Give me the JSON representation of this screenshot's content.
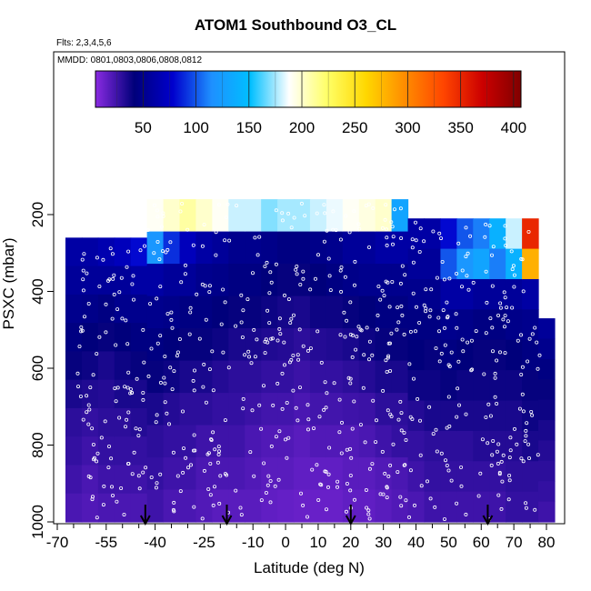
{
  "title": "ATOM1 Southbound O3_CL",
  "flights_note": "Flts: 2,3,4,5,6",
  "dates_note": "MMDD: 0801,0803,0806,0808,0812",
  "chart_data": {
    "type": "heatmap",
    "title": "ATOM1 Southbound O3_CL",
    "xlabel": "Latitude (deg N)",
    "ylabel": "PSXC (mbar)",
    "xlim": [
      -70,
      80
    ],
    "ylim": [
      1000,
      140
    ],
    "y_inverted": true,
    "x_ticks": [
      -70,
      -55,
      -40,
      -25,
      -10,
      0,
      10,
      20,
      30,
      40,
      50,
      60,
      70,
      80
    ],
    "x_minor_ticks": [
      -65,
      -60,
      -50,
      -45,
      -35,
      -30,
      -20,
      -15,
      -5,
      5,
      15,
      25,
      35,
      45,
      55,
      65,
      75
    ],
    "y_ticks": [
      200,
      400,
      600,
      800,
      1000
    ],
    "colorbar": {
      "range": [
        5,
        407
      ],
      "ticks": [
        50,
        100,
        150,
        200,
        250,
        300,
        350,
        400
      ],
      "placement": "top",
      "colors": [
        "#8a2be2",
        "#00007a",
        "#0000cd",
        "#1e90ff",
        "#00bfff",
        "#ffffff",
        "#ffff66",
        "#ffd700",
        "#ff8c00",
        "#ff4500",
        "#cc0000",
        "#800000"
      ]
    },
    "grid": false,
    "columns": [
      {
        "lat": -65,
        "top": 260,
        "bottom": 1000,
        "o3": [
          60,
          55,
          50,
          45,
          40,
          35,
          30,
          28,
          25,
          22
        ]
      },
      {
        "lat": -60,
        "top": 260,
        "bottom": 1000,
        "o3": [
          60,
          55,
          48,
          42,
          38,
          33,
          28,
          25,
          22,
          20
        ]
      },
      {
        "lat": -55,
        "top": 260,
        "bottom": 1000,
        "o3": [
          65,
          55,
          45,
          40,
          35,
          32,
          30,
          28,
          25,
          22
        ]
      },
      {
        "lat": -50,
        "top": 260,
        "bottom": 1000,
        "o3": [
          70,
          55,
          50,
          42,
          38,
          35,
          30,
          28,
          25,
          22
        ]
      },
      {
        "lat": -45,
        "top": 260,
        "bottom": 1000,
        "o3": [
          80,
          60,
          50,
          45,
          40,
          35,
          32,
          28,
          25,
          22
        ]
      },
      {
        "lat": -40,
        "top": 160,
        "bottom": 1000,
        "o3": [
          190,
          120,
          60,
          50,
          45,
          40,
          35,
          30,
          28,
          25
        ]
      },
      {
        "lat": -35,
        "top": 160,
        "bottom": 1000,
        "o3": [
          200,
          90,
          55,
          48,
          42,
          38,
          32,
          28,
          25,
          22
        ]
      },
      {
        "lat": -30,
        "top": 160,
        "bottom": 1000,
        "o3": [
          210,
          70,
          55,
          45,
          40,
          35,
          30,
          28,
          25,
          22
        ]
      },
      {
        "lat": -25,
        "top": 160,
        "bottom": 1000,
        "o3": [
          200,
          60,
          50,
          45,
          40,
          35,
          30,
          25,
          22,
          20
        ]
      },
      {
        "lat": -20,
        "top": 160,
        "bottom": 1000,
        "o3": [
          190,
          55,
          48,
          42,
          38,
          32,
          28,
          25,
          22,
          18
        ]
      },
      {
        "lat": -15,
        "top": 160,
        "bottom": 1000,
        "o3": [
          180,
          50,
          45,
          40,
          35,
          30,
          28,
          25,
          22,
          18
        ]
      },
      {
        "lat": -10,
        "top": 160,
        "bottom": 1000,
        "o3": [
          180,
          50,
          45,
          40,
          35,
          30,
          26,
          22,
          20,
          18
        ]
      },
      {
        "lat": -5,
        "top": 160,
        "bottom": 1000,
        "o3": [
          170,
          48,
          42,
          38,
          33,
          28,
          24,
          20,
          18,
          16
        ]
      },
      {
        "lat": 0,
        "top": 160,
        "bottom": 1000,
        "o3": [
          175,
          45,
          40,
          36,
          32,
          28,
          24,
          20,
          18,
          15
        ]
      },
      {
        "lat": 5,
        "top": 160,
        "bottom": 1000,
        "o3": [
          175,
          45,
          40,
          35,
          30,
          26,
          22,
          18,
          16,
          14
        ]
      },
      {
        "lat": 10,
        "top": 160,
        "bottom": 1000,
        "o3": [
          180,
          48,
          42,
          38,
          32,
          28,
          24,
          20,
          16,
          14
        ]
      },
      {
        "lat": 15,
        "top": 160,
        "bottom": 1000,
        "o3": [
          185,
          50,
          45,
          38,
          33,
          28,
          24,
          20,
          16,
          14
        ]
      },
      {
        "lat": 20,
        "top": 160,
        "bottom": 1000,
        "o3": [
          190,
          55,
          48,
          40,
          35,
          30,
          25,
          20,
          18,
          16
        ]
      },
      {
        "lat": 25,
        "top": 160,
        "bottom": 1000,
        "o3": [
          195,
          55,
          50,
          42,
          38,
          32,
          26,
          22,
          18,
          16
        ]
      },
      {
        "lat": 30,
        "top": 160,
        "bottom": 1000,
        "o3": [
          200,
          60,
          50,
          45,
          40,
          35,
          30,
          25,
          20,
          18
        ]
      },
      {
        "lat": 35,
        "top": 160,
        "bottom": 1000,
        "o3": [
          130,
          60,
          50,
          45,
          40,
          35,
          30,
          28,
          22,
          20
        ]
      },
      {
        "lat": 40,
        "top": 210,
        "bottom": 1000,
        "o3": [
          60,
          55,
          50,
          45,
          42,
          38,
          32,
          28,
          25,
          22
        ]
      },
      {
        "lat": 45,
        "top": 210,
        "bottom": 1000,
        "o3": [
          60,
          55,
          50,
          45,
          40,
          38,
          35,
          30,
          28,
          25
        ]
      },
      {
        "lat": 50,
        "top": 210,
        "bottom": 1000,
        "o3": [
          80,
          100,
          60,
          50,
          45,
          40,
          35,
          30,
          28,
          25
        ]
      },
      {
        "lat": 55,
        "top": 210,
        "bottom": 1000,
        "o3": [
          100,
          120,
          60,
          48,
          42,
          38,
          35,
          30,
          28,
          25
        ]
      },
      {
        "lat": 60,
        "top": 210,
        "bottom": 1000,
        "o3": [
          110,
          130,
          55,
          45,
          40,
          38,
          35,
          32,
          28,
          25
        ]
      },
      {
        "lat": 65,
        "top": 210,
        "bottom": 1000,
        "o3": [
          140,
          110,
          55,
          45,
          40,
          38,
          35,
          32,
          28,
          25
        ]
      },
      {
        "lat": 70,
        "top": 210,
        "bottom": 1000,
        "o3": [
          180,
          140,
          55,
          48,
          42,
          38,
          35,
          32,
          30,
          28
        ]
      },
      {
        "lat": 75,
        "top": 210,
        "bottom": 1000,
        "o3": [
          350,
          280,
          60,
          50,
          45,
          40,
          38,
          35,
          30,
          28
        ]
      },
      {
        "lat": 80,
        "top": 470,
        "bottom": 1000,
        "o3": [
          55,
          50,
          45,
          40,
          38,
          35,
          32,
          30,
          28,
          25
        ]
      }
    ],
    "arrows_lat": [
      -43,
      -18,
      20,
      62
    ]
  }
}
